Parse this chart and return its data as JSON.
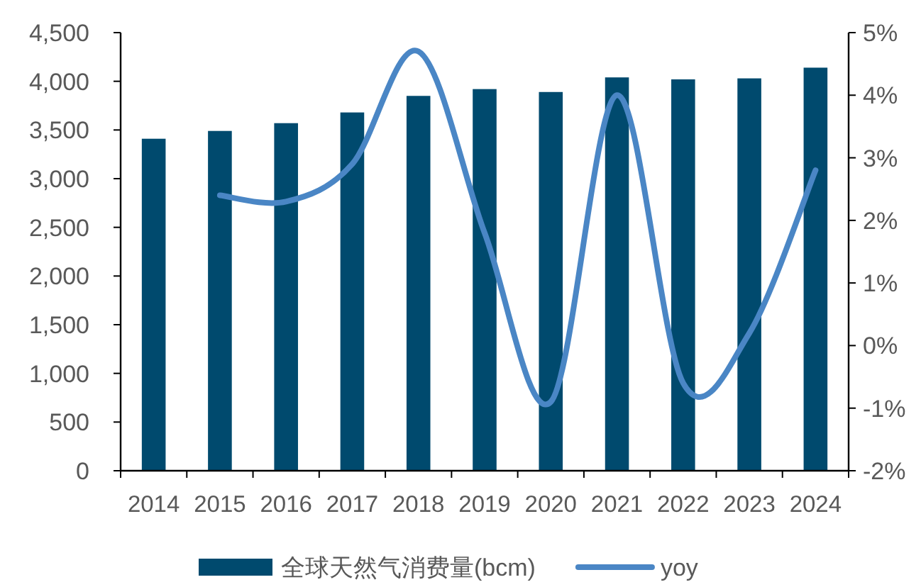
{
  "chart_data": {
    "type": "bar",
    "categories": [
      "2014",
      "2015",
      "2016",
      "2017",
      "2018",
      "2019",
      "2020",
      "2021",
      "2022",
      "2023",
      "2024"
    ],
    "series": [
      {
        "name": "全球天然气消费量(bcm)",
        "color": "#004a6e",
        "values": [
          3410,
          3490,
          3570,
          3680,
          3850,
          3920,
          3890,
          4040,
          4020,
          4030,
          4140
        ]
      },
      {
        "name": "yoy",
        "type": "line",
        "axis": "y2",
        "color": "#4a86c5",
        "values": [
          null,
          2.4,
          2.3,
          2.9,
          4.7,
          1.8,
          -0.9,
          4.0,
          -0.6,
          0.2,
          2.8
        ]
      }
    ],
    "ylim": [
      0,
      4500
    ],
    "yticks": [
      0,
      500,
      {
        "value": 1000,
        "label": "1,000"
      },
      {
        "value": 1500,
        "label": "1,500"
      },
      {
        "value": 2000,
        "label": "2,000"
      },
      {
        "value": 2500,
        "label": "2,500"
      },
      {
        "value": 3000,
        "label": "3,000"
      },
      {
        "value": 3500,
        "label": "3,500"
      },
      {
        "value": 4000,
        "label": "4,000"
      },
      {
        "value": 4500,
        "label": "4,500"
      }
    ],
    "y2lim": [
      -2,
      5
    ],
    "y2ticks": [
      {
        "value": -2,
        "label": "-2%"
      },
      {
        "value": -1,
        "label": "-1%"
      },
      {
        "value": 0,
        "label": "0%"
      },
      {
        "value": 1,
        "label": "1%"
      },
      {
        "value": 2,
        "label": "2%"
      },
      {
        "value": 3,
        "label": "3%"
      },
      {
        "value": 4,
        "label": "4%"
      },
      {
        "value": 5,
        "label": "5%"
      }
    ],
    "grid": false,
    "legend": "bottom",
    "marker": "none",
    "line_style": "solid"
  }
}
